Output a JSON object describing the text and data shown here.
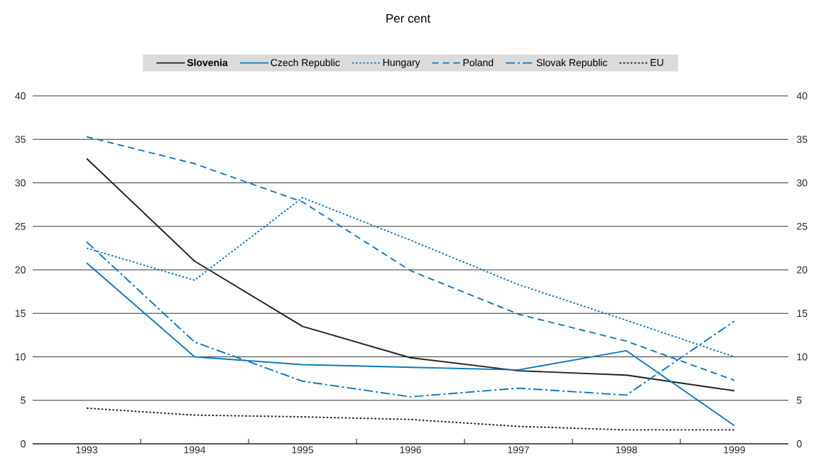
{
  "chart_data": {
    "type": "line",
    "title": "Per cent",
    "x": [
      1993,
      1994,
      1995,
      1996,
      1997,
      1998,
      1999
    ],
    "xlim": [
      1992.5,
      1999.5
    ],
    "xticks": [
      1993,
      {
        "value": 1993.5,
        "label": null
      },
      1994,
      {
        "value": 1994.5,
        "label": null
      },
      1995,
      {
        "value": 1995.5,
        "label": null
      },
      1996,
      {
        "value": 1996.5,
        "label": null
      },
      1997,
      {
        "value": 1997.5,
        "label": null
      },
      1998,
      {
        "value": 1998.5,
        "label": null
      },
      1999
    ],
    "ylim": [
      0,
      40
    ],
    "yticks": [
      0,
      5,
      10,
      15,
      20,
      25,
      30,
      35,
      40
    ],
    "y2lim": [
      0,
      40
    ],
    "y2ticks": [
      0,
      5,
      10,
      15,
      20,
      25,
      30,
      35,
      40
    ],
    "grid": "y",
    "legend": "top",
    "marker": "none",
    "series": [
      {
        "name": "**Slovenia**",
        "color": "#231f20",
        "line_style": "solid",
        "values": [
          32.8,
          21.0,
          13.5,
          9.9,
          8.4,
          7.9,
          6.1
        ]
      },
      {
        "name": "Czech Republic",
        "color": "#0a78c2",
        "line_style": "solid",
        "values": [
          20.8,
          10.0,
          9.1,
          8.8,
          8.5,
          10.7,
          2.1
        ]
      },
      {
        "name": "Hungary",
        "color": "#0a78c2",
        "line_style": "dotted",
        "values": [
          22.5,
          18.8,
          28.3,
          23.4,
          18.3,
          14.2,
          10.0
        ]
      },
      {
        "name": "Poland",
        "color": "#0a78c2",
        "line_style": "dashed",
        "values": [
          35.3,
          32.2,
          27.8,
          19.9,
          14.9,
          11.8,
          7.3
        ]
      },
      {
        "name": "Slovak Republic",
        "color": "#0a78c2",
        "line_style": "dashdot",
        "values": [
          23.2,
          11.7,
          7.2,
          5.4,
          6.4,
          5.6,
          14.1
        ]
      },
      {
        "name": "EU",
        "color": "#231f20",
        "line_style": "dotted",
        "values": [
          4.1,
          3.3,
          3.1,
          2.8,
          2.0,
          1.6,
          1.6
        ]
      }
    ]
  }
}
